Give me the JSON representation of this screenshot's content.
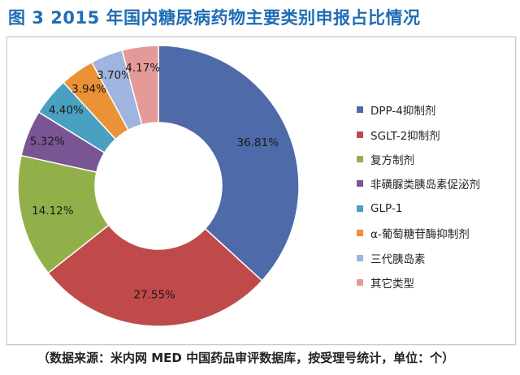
{
  "figure": {
    "title": "图 3  2015 年国内糖尿病药物主要类别申报占比情况",
    "source": "（数据来源：米内网 MED 中国药品审评数据库，按受理号统计，单位：个）"
  },
  "chart_data": {
    "type": "pie",
    "variant": "donut",
    "title": "图 3  2015 年国内糖尿病药物主要类别申报占比情况",
    "legend_placement": "right",
    "series": [
      {
        "name": "DPP-4抑制剂",
        "value": 36.81,
        "label": "36.81%",
        "color": "#4f6aa9"
      },
      {
        "name": "SGLT-2抑制剂",
        "value": 27.55,
        "label": "27.55%",
        "color": "#c0494a"
      },
      {
        "name": "复方制剂",
        "value": 14.12,
        "label": "14.12%",
        "color": "#92b04a"
      },
      {
        "name": "非磺脲类胰岛素促泌剂",
        "value": 5.32,
        "label": "5.32%",
        "color": "#7a5594"
      },
      {
        "name": "GLP-1",
        "value": 4.4,
        "label": "4.40%",
        "color": "#4aa0c0"
      },
      {
        "name": "α-葡萄糖苷酶抑制剂",
        "value": 3.94,
        "label": "3.94%",
        "color": "#eb9136"
      },
      {
        "name": "三代胰岛素",
        "value": 3.7,
        "label": "3.70%",
        "color": "#9fb4de"
      },
      {
        "name": "其它类型",
        "value": 4.17,
        "label": "4.17%",
        "color": "#e39a99"
      }
    ]
  }
}
